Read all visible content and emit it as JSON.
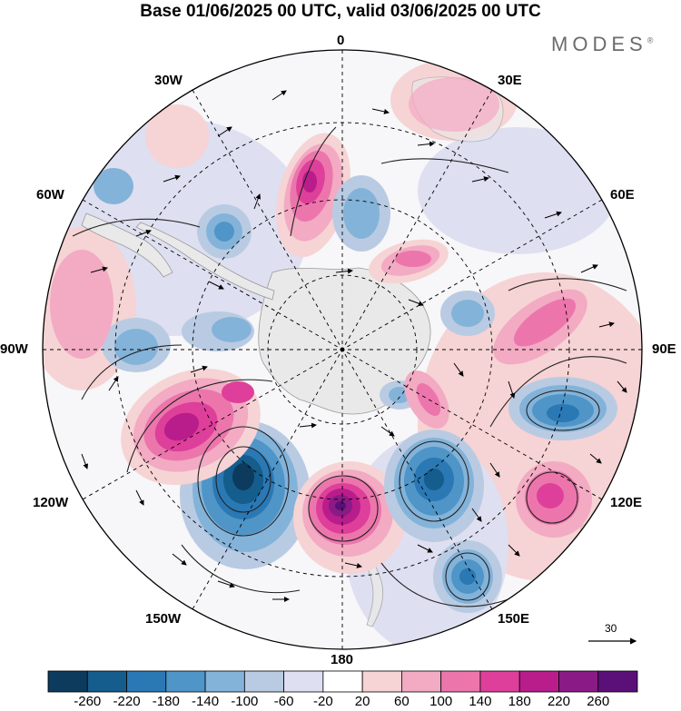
{
  "title": "Base 01/06/2025 00 UTC, valid 03/06/2025 00 UTC",
  "brand": "MODES",
  "brand_mark": "®",
  "longitude_labels": {
    "top": "0",
    "top_right": "30E",
    "upper_right": "60E",
    "right": "90E",
    "lower_right": "120E",
    "bottom_right": "150E",
    "bottom": "180",
    "bottom_left": "150W",
    "lower_left": "120W",
    "left": "90W",
    "upper_left": "60W",
    "top_left": "30W"
  },
  "vector_reference": {
    "value": "30"
  },
  "colorbar": {
    "ticks": [
      "-260",
      "-220",
      "-180",
      "-140",
      "-100",
      "-60",
      "-20",
      "20",
      "60",
      "100",
      "140",
      "180",
      "220",
      "260"
    ],
    "colors": [
      "#0c3b5e",
      "#145d8c",
      "#2a78b4",
      "#4f95c7",
      "#84b3d9",
      "#b9cbe3",
      "#dedff0",
      "#ffffff",
      "#f6d3d4",
      "#f3aac3",
      "#ec76ac",
      "#de3f9a",
      "#b91c8b",
      "#8a1a86",
      "#5a1078"
    ]
  },
  "map": {
    "projection": "polar stereographic, South Pole",
    "land_color": "#e9e9e9",
    "anomaly_centers": [
      {
        "name": "negative-anomaly-pacific-west",
        "sign": "negative",
        "level": -260
      },
      {
        "name": "positive-anomaly-pacific-central",
        "sign": "positive",
        "level": 260
      },
      {
        "name": "negative-anomaly-pacific-east",
        "sign": "negative",
        "level": -180
      },
      {
        "name": "positive-anomaly-southeast-pacific",
        "sign": "positive",
        "level": 180
      },
      {
        "name": "positive-anomaly-atlantic",
        "sign": "positive",
        "level": 180
      },
      {
        "name": "negative-anomaly-indian-ocean",
        "sign": "negative",
        "level": -140
      },
      {
        "name": "positive-anomaly-indian-ocean",
        "sign": "positive",
        "level": 140
      },
      {
        "name": "positive-anomaly-tasman",
        "sign": "positive",
        "level": 140
      }
    ]
  }
}
